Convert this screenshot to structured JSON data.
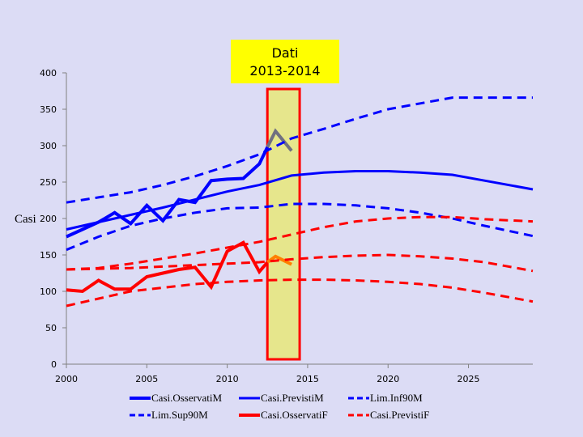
{
  "chart_data": {
    "type": "line",
    "xlabel": "",
    "ylabel": "Casi",
    "xlim": [
      2000,
      2029
    ],
    "ylim": [
      0,
      400
    ],
    "x_ticks": [
      2000,
      2005,
      2010,
      2015,
      2020,
      2025
    ],
    "y_ticks": [
      0,
      50,
      100,
      150,
      200,
      250,
      300,
      350,
      400
    ],
    "grid": false,
    "legend_position": "bottom",
    "annotation": {
      "lines": [
        "Dati",
        "2013-2014"
      ],
      "highlight_x_range": [
        2013,
        2014
      ],
      "fill_color": "#e6e68c",
      "box_color": "#ffff00",
      "border_color": "#ff0000"
    },
    "series": [
      {
        "name": "Casi.OsservatiM",
        "color": "#0000ff",
        "style": "solid",
        "width": 4,
        "x": [
          2000,
          2001,
          2002,
          2003,
          2004,
          2005,
          2006,
          2007,
          2008,
          2009,
          2010,
          2011,
          2012,
          2012.5
        ],
        "y": [
          175,
          185,
          195,
          208,
          193,
          218,
          197,
          226,
          222,
          252,
          254,
          255,
          275,
          298
        ]
      },
      {
        "name": "",
        "color": "#707080",
        "style": "solid",
        "width": 4,
        "x": [
          2012.5,
          2013,
          2014
        ],
        "y": [
          298,
          320,
          293
        ]
      },
      {
        "name": "Casi.PrevistiM",
        "color": "#0000ff",
        "style": "solid",
        "width": 3,
        "x": [
          2000,
          2002,
          2004,
          2006,
          2008,
          2010,
          2012,
          2014,
          2016,
          2018,
          2020,
          2022,
          2024,
          2026,
          2029
        ],
        "y": [
          185,
          195,
          205,
          215,
          226,
          237,
          246,
          259,
          263,
          265,
          265,
          263,
          260,
          252,
          240
        ]
      },
      {
        "name": "Lim.Inf90M",
        "color": "#0000ff",
        "style": "dashed",
        "width": 3,
        "x": [
          2000,
          2002,
          2004,
          2006,
          2008,
          2010,
          2012,
          2014,
          2016,
          2018,
          2020,
          2022,
          2024,
          2026,
          2029
        ],
        "y": [
          157,
          175,
          190,
          200,
          208,
          214,
          215,
          220,
          220,
          218,
          214,
          208,
          200,
          190,
          176
        ]
      },
      {
        "name": "Lim.Sup90M",
        "color": "#0000ff",
        "style": "dashed",
        "width": 3,
        "x": [
          2000,
          2002,
          2004,
          2006,
          2008,
          2010,
          2012,
          2014,
          2016,
          2018,
          2020,
          2022,
          2024,
          2026,
          2029
        ],
        "y": [
          222,
          229,
          236,
          246,
          258,
          272,
          288,
          310,
          323,
          337,
          350,
          358,
          366,
          366,
          366
        ]
      },
      {
        "name": "Casi.OsservatiF",
        "color": "#ff0000",
        "style": "solid",
        "width": 4,
        "x": [
          2000,
          2001,
          2002,
          2003,
          2004,
          2005,
          2006,
          2007,
          2008,
          2009,
          2010,
          2011,
          2012,
          2012.5
        ],
        "y": [
          102,
          100,
          115,
          103,
          103,
          120,
          125,
          130,
          133,
          106,
          155,
          167,
          127,
          140
        ]
      },
      {
        "name": "",
        "color": "#ff8000",
        "style": "solid",
        "width": 4,
        "x": [
          2012.5,
          2013,
          2014
        ],
        "y": [
          140,
          148,
          137
        ]
      },
      {
        "name": "Casi.PrevistiF",
        "color": "#ff0000",
        "style": "dashed",
        "width": 3,
        "x": [
          2000,
          2002,
          2004,
          2006,
          2008,
          2010,
          2012,
          2014,
          2016,
          2018,
          2020,
          2022,
          2024,
          2026,
          2029
        ],
        "y": [
          130,
          132,
          138,
          145,
          152,
          160,
          168,
          178,
          188,
          196,
          200,
          202,
          202,
          199,
          196
        ]
      },
      {
        "name": "",
        "color": "#ff0000",
        "style": "dashed",
        "width": 3,
        "x": [
          2000,
          2002,
          2004,
          2006,
          2008,
          2010,
          2012,
          2014,
          2016,
          2018,
          2020,
          2022,
          2024,
          2026,
          2029
        ],
        "y": [
          80,
          90,
          100,
          105,
          110,
          113,
          115,
          116,
          116,
          115,
          113,
          110,
          105,
          98,
          86
        ]
      },
      {
        "name": "",
        "color": "#ff0000",
        "style": "dashed",
        "width": 3,
        "x": [
          2000,
          2002,
          2004,
          2006,
          2008,
          2010,
          2012,
          2014,
          2016,
          2018,
          2020,
          2022,
          2024,
          2026,
          2029
        ],
        "y": [
          130,
          131,
          132,
          134,
          136,
          138,
          140,
          144,
          147,
          149,
          150,
          148,
          145,
          140,
          128
        ]
      }
    ]
  }
}
